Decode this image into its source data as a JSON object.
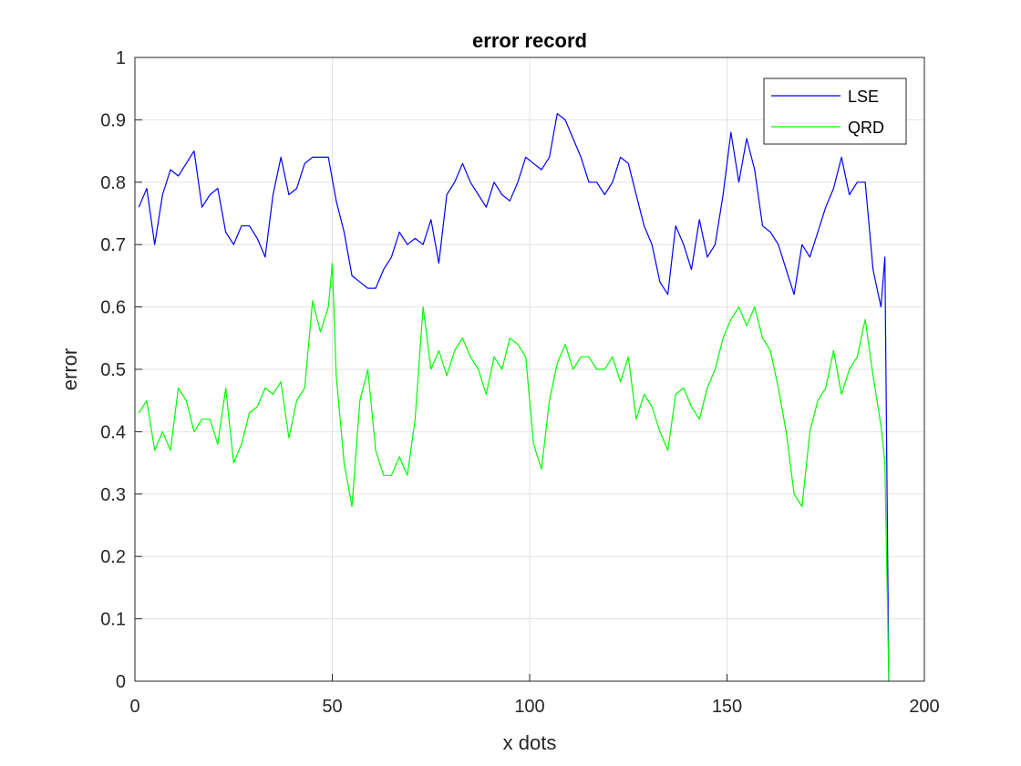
{
  "chart_data": {
    "type": "line",
    "title": "error record",
    "xlabel": "x dots",
    "ylabel": "error",
    "xlim": [
      0,
      200
    ],
    "ylim": [
      0,
      1
    ],
    "xticks": [
      "0",
      "50",
      "100",
      "150",
      "200"
    ],
    "yticks": [
      "0",
      "0.1",
      "0.2",
      "0.3",
      "0.4",
      "0.5",
      "0.6",
      "0.7",
      "0.8",
      "0.9",
      "1"
    ],
    "grid": true,
    "legend_position": "top-right",
    "series": [
      {
        "name": "LSE",
        "color": "#0000ff",
        "x": [
          1,
          3,
          5,
          7,
          9,
          11,
          13,
          15,
          17,
          19,
          21,
          23,
          25,
          27,
          29,
          31,
          33,
          35,
          37,
          39,
          41,
          43,
          45,
          47,
          49,
          51,
          53,
          55,
          57,
          59,
          61,
          63,
          65,
          67,
          69,
          71,
          73,
          75,
          77,
          79,
          81,
          83,
          85,
          87,
          89,
          91,
          93,
          95,
          97,
          99,
          101,
          103,
          105,
          107,
          109,
          111,
          113,
          115,
          117,
          119,
          121,
          123,
          125,
          127,
          129,
          131,
          133,
          135,
          137,
          139,
          141,
          143,
          145,
          147,
          149,
          151,
          153,
          155,
          157,
          159,
          161,
          163,
          165,
          167,
          169,
          171,
          173,
          175,
          177,
          179,
          181,
          183,
          185,
          187,
          189,
          190,
          191
        ],
        "y": [
          0.76,
          0.79,
          0.7,
          0.78,
          0.82,
          0.81,
          0.83,
          0.85,
          0.76,
          0.78,
          0.79,
          0.72,
          0.7,
          0.73,
          0.73,
          0.71,
          0.68,
          0.78,
          0.84,
          0.78,
          0.79,
          0.83,
          0.84,
          0.84,
          0.84,
          0.77,
          0.72,
          0.65,
          0.64,
          0.63,
          0.63,
          0.66,
          0.68,
          0.72,
          0.7,
          0.71,
          0.7,
          0.74,
          0.67,
          0.78,
          0.8,
          0.83,
          0.8,
          0.78,
          0.76,
          0.8,
          0.78,
          0.77,
          0.8,
          0.84,
          0.83,
          0.82,
          0.84,
          0.91,
          0.9,
          0.87,
          0.84,
          0.8,
          0.8,
          0.78,
          0.8,
          0.84,
          0.83,
          0.78,
          0.73,
          0.7,
          0.64,
          0.62,
          0.73,
          0.7,
          0.66,
          0.74,
          0.68,
          0.7,
          0.78,
          0.88,
          0.8,
          0.87,
          0.82,
          0.73,
          0.72,
          0.7,
          0.66,
          0.62,
          0.7,
          0.68,
          0.72,
          0.76,
          0.79,
          0.84,
          0.78,
          0.8,
          0.8,
          0.66,
          0.6,
          0.68,
          0.0
        ]
      },
      {
        "name": "QRD",
        "color": "#00ff00",
        "x": [
          1,
          3,
          5,
          7,
          9,
          11,
          13,
          15,
          17,
          19,
          21,
          23,
          25,
          27,
          29,
          31,
          33,
          35,
          37,
          39,
          41,
          43,
          45,
          47,
          49,
          50,
          51,
          53,
          55,
          57,
          59,
          61,
          63,
          65,
          67,
          69,
          71,
          73,
          75,
          77,
          79,
          81,
          83,
          85,
          87,
          89,
          91,
          93,
          95,
          97,
          99,
          101,
          103,
          105,
          107,
          109,
          111,
          113,
          115,
          117,
          119,
          121,
          123,
          125,
          127,
          129,
          131,
          133,
          135,
          137,
          139,
          141,
          143,
          145,
          147,
          149,
          151,
          153,
          155,
          157,
          159,
          161,
          163,
          165,
          167,
          169,
          171,
          173,
          175,
          177,
          179,
          181,
          183,
          185,
          187,
          189,
          190,
          191
        ],
        "y": [
          0.43,
          0.45,
          0.37,
          0.4,
          0.37,
          0.47,
          0.45,
          0.4,
          0.42,
          0.42,
          0.38,
          0.47,
          0.35,
          0.38,
          0.43,
          0.44,
          0.47,
          0.46,
          0.48,
          0.39,
          0.45,
          0.47,
          0.61,
          0.56,
          0.6,
          0.67,
          0.49,
          0.35,
          0.28,
          0.45,
          0.5,
          0.37,
          0.33,
          0.33,
          0.36,
          0.33,
          0.42,
          0.6,
          0.5,
          0.53,
          0.49,
          0.53,
          0.55,
          0.52,
          0.5,
          0.46,
          0.52,
          0.5,
          0.55,
          0.54,
          0.52,
          0.38,
          0.34,
          0.45,
          0.51,
          0.54,
          0.5,
          0.52,
          0.52,
          0.5,
          0.5,
          0.52,
          0.48,
          0.52,
          0.42,
          0.46,
          0.44,
          0.4,
          0.37,
          0.46,
          0.47,
          0.44,
          0.42,
          0.47,
          0.5,
          0.55,
          0.58,
          0.6,
          0.57,
          0.6,
          0.55,
          0.53,
          0.47,
          0.4,
          0.3,
          0.28,
          0.4,
          0.45,
          0.47,
          0.53,
          0.46,
          0.5,
          0.52,
          0.58,
          0.49,
          0.41,
          0.35,
          0.0
        ]
      }
    ]
  }
}
